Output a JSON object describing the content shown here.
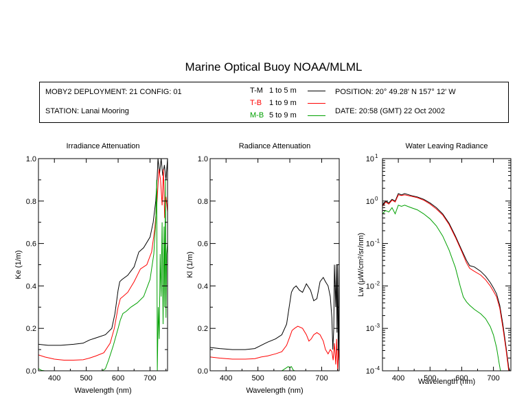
{
  "page_title": "Marine Optical Buoy NOAA/MLML",
  "info": {
    "deployment": "MOBY2 DEPLOYMENT: 21 CONFIG: 01",
    "station": "STATION: Lanai Mooring",
    "position": "POSITION: 20° 49.28' N   157° 12' W",
    "date": "DATE: 20:58 (GMT) 22 Oct 2002",
    "legend": [
      {
        "code": "T-M",
        "range": "1 to 5  m",
        "color": "#000000"
      },
      {
        "code": "T-B",
        "range": "1 to 9  m",
        "color": "#ff0000"
      },
      {
        "code": "M-B",
        "range": "5 to 9  m",
        "color": "#00a000"
      }
    ]
  },
  "chart_data": [
    {
      "type": "line",
      "title": "Irradiance Attenuation",
      "xlabel": "Wavelength (nm)",
      "ylabel": "Ke  (1/m)",
      "xlim": [
        350,
        755
      ],
      "ylim": [
        0,
        1.0
      ],
      "xticks": [
        400,
        500,
        600,
        700
      ],
      "yticks": [
        "0.0",
        "0.2",
        "0.4",
        "0.6",
        "0.8",
        "1.0"
      ],
      "series": [
        {
          "code": "T-M",
          "color": "#000000",
          "points": [
            [
              350,
              0.125
            ],
            [
              380,
              0.12
            ],
            [
              420,
              0.12
            ],
            [
              460,
              0.125
            ],
            [
              490,
              0.13
            ],
            [
              510,
              0.145
            ],
            [
              530,
              0.155
            ],
            [
              560,
              0.17
            ],
            [
              580,
              0.2
            ],
            [
              590,
              0.27
            ],
            [
              600,
              0.38
            ],
            [
              605,
              0.42
            ],
            [
              612,
              0.43
            ],
            [
              630,
              0.45
            ],
            [
              650,
              0.49
            ],
            [
              665,
              0.56
            ],
            [
              680,
              0.58
            ],
            [
              700,
              0.63
            ],
            [
              710,
              0.7
            ],
            [
              718,
              0.8
            ],
            [
              722,
              0.9
            ],
            [
              725,
              1.0
            ],
            [
              730,
              0.93
            ],
            [
              735,
              1.0
            ],
            [
              740,
              0.92
            ],
            [
              745,
              0.97
            ],
            [
              750,
              0.9
            ],
            [
              755,
              1.0
            ]
          ]
        },
        {
          "code": "T-B",
          "color": "#ff0000",
          "points": [
            [
              350,
              0.075
            ],
            [
              370,
              0.065
            ],
            [
              400,
              0.055
            ],
            [
              430,
              0.05
            ],
            [
              460,
              0.05
            ],
            [
              490,
              0.052
            ],
            [
              510,
              0.06
            ],
            [
              530,
              0.07
            ],
            [
              555,
              0.085
            ],
            [
              575,
              0.13
            ],
            [
              588,
              0.2
            ],
            [
              600,
              0.3
            ],
            [
              607,
              0.34
            ],
            [
              615,
              0.35
            ],
            [
              630,
              0.37
            ],
            [
              650,
              0.42
            ],
            [
              670,
              0.48
            ],
            [
              690,
              0.5
            ],
            [
              705,
              0.56
            ],
            [
              715,
              0.67
            ],
            [
              722,
              0.8
            ],
            [
              728,
              0.95
            ],
            [
              733,
              0.9
            ],
            [
              738,
              0.78
            ],
            [
              742,
              0.95
            ],
            [
              746,
              0.72
            ],
            [
              750,
              0.82
            ],
            [
              755,
              0.75
            ]
          ]
        },
        {
          "code": "M-B",
          "color": "#00a000",
          "points": [
            [
              350,
              0.01
            ],
            [
              360,
              0.002
            ],
            [
              370,
              0.0
            ],
            [
              550,
              0.0
            ],
            [
              560,
              0.01
            ],
            [
              570,
              0.05
            ],
            [
              585,
              0.12
            ],
            [
              600,
              0.2
            ],
            [
              607,
              0.24
            ],
            [
              615,
              0.27
            ],
            [
              625,
              0.28
            ],
            [
              640,
              0.3
            ],
            [
              660,
              0.32
            ],
            [
              680,
              0.35
            ],
            [
              700,
              0.43
            ],
            [
              712,
              0.55
            ],
            [
              718,
              0.7
            ],
            [
              721,
              0.9
            ],
            [
              723,
              0.0
            ],
            [
              726,
              0.3
            ],
            [
              729,
              0.15
            ],
            [
              732,
              0.55
            ],
            [
              735,
              0.35
            ],
            [
              738,
              0.7
            ],
            [
              741,
              0.22
            ],
            [
              744,
              0.68
            ],
            [
              746,
              0.3
            ],
            [
              748,
              0.9
            ],
            [
              750,
              0.25
            ],
            [
              752,
              0.55
            ],
            [
              755,
              0.6
            ]
          ]
        }
      ]
    },
    {
      "type": "line",
      "title": "Radiance Attenuation",
      "xlabel": "Wavelength (nm)",
      "ylabel": "Kl  (1/m)",
      "xlim": [
        350,
        755
      ],
      "ylim": [
        0,
        1.0
      ],
      "xticks": [
        400,
        500,
        600,
        700
      ],
      "yticks": [
        "0.0",
        "0.2",
        "0.4",
        "0.6",
        "0.8",
        "1.0"
      ],
      "series": [
        {
          "code": "T-M",
          "color": "#000000",
          "points": [
            [
              350,
              0.11
            ],
            [
              380,
              0.105
            ],
            [
              420,
              0.1
            ],
            [
              460,
              0.1
            ],
            [
              490,
              0.105
            ],
            [
              510,
              0.12
            ],
            [
              530,
              0.135
            ],
            [
              555,
              0.15
            ],
            [
              575,
              0.17
            ],
            [
              590,
              0.22
            ],
            [
              598,
              0.3
            ],
            [
              605,
              0.37
            ],
            [
              612,
              0.39
            ],
            [
              620,
              0.4
            ],
            [
              630,
              0.38
            ],
            [
              640,
              0.37
            ],
            [
              652,
              0.41
            ],
            [
              665,
              0.38
            ],
            [
              675,
              0.33
            ],
            [
              685,
              0.34
            ],
            [
              695,
              0.42
            ],
            [
              705,
              0.44
            ],
            [
              712,
              0.42
            ],
            [
              720,
              0.4
            ],
            [
              727,
              0.35
            ],
            [
              732,
              0.25
            ],
            [
              735,
              0.1
            ],
            [
              738,
              0.2
            ],
            [
              740,
              0.5
            ],
            [
              744,
              0.3
            ],
            [
              746,
              0.5
            ],
            [
              748,
              0.18
            ],
            [
              750,
              0.5
            ],
            [
              752,
              0.05
            ],
            [
              755,
              0.5
            ]
          ]
        },
        {
          "code": "T-B",
          "color": "#ff0000",
          "points": [
            [
              350,
              0.065
            ],
            [
              380,
              0.06
            ],
            [
              420,
              0.055
            ],
            [
              460,
              0.055
            ],
            [
              490,
              0.057
            ],
            [
              510,
              0.065
            ],
            [
              530,
              0.07
            ],
            [
              555,
              0.08
            ],
            [
              575,
              0.09
            ],
            [
              590,
              0.12
            ],
            [
              600,
              0.16
            ],
            [
              607,
              0.19
            ],
            [
              615,
              0.2
            ],
            [
              625,
              0.21
            ],
            [
              640,
              0.2
            ],
            [
              652,
              0.17
            ],
            [
              660,
              0.14
            ],
            [
              667,
              0.15
            ],
            [
              675,
              0.17
            ],
            [
              685,
              0.18
            ],
            [
              695,
              0.17
            ],
            [
              705,
              0.14
            ],
            [
              712,
              0.1
            ],
            [
              720,
              0.08
            ],
            [
              727,
              0.1
            ],
            [
              732,
              0.09
            ],
            [
              736,
              0.05
            ],
            [
              740,
              0.13
            ],
            [
              744,
              0.03
            ],
            [
              747,
              0.15
            ],
            [
              750,
              0.0
            ],
            [
              753,
              0.1
            ],
            [
              755,
              0.05
            ]
          ]
        },
        {
          "code": "M-B",
          "color": "#00a000",
          "points": [
            [
              575,
              0.0
            ],
            [
              585,
              0.01
            ],
            [
              595,
              0.02
            ],
            [
              600,
              0.015
            ],
            [
              605,
              0.02
            ],
            [
              610,
              0.005
            ],
            [
              615,
              0.0
            ]
          ]
        }
      ]
    },
    {
      "type": "line",
      "title": "Water Leaving Radiance",
      "xlabel": "Wavelength (nm)",
      "ylabel": "Lw  (μW/cm²/sr/nm)",
      "xlim": [
        350,
        755
      ],
      "ylim": [
        0.0001,
        10
      ],
      "yscale": "log",
      "xticks": [
        400,
        500,
        600,
        700
      ],
      "yticks": [
        {
          "base": "10",
          "exp": "1"
        },
        {
          "base": "10",
          "exp": "0"
        },
        {
          "base": "10",
          "exp": "-1"
        },
        {
          "base": "10",
          "exp": "-2"
        },
        {
          "base": "10",
          "exp": "-3"
        },
        {
          "base": "10",
          "exp": "-4"
        }
      ],
      "series": [
        {
          "code": "T-M",
          "color": "#000000",
          "points": [
            [
              350,
              0.8
            ],
            [
              360,
              1.0
            ],
            [
              370,
              0.9
            ],
            [
              380,
              1.1
            ],
            [
              390,
              1.0
            ],
            [
              400,
              1.5
            ],
            [
              410,
              1.4
            ],
            [
              420,
              1.5
            ],
            [
              440,
              1.35
            ],
            [
              460,
              1.25
            ],
            [
              480,
              1.1
            ],
            [
              500,
              0.9
            ],
            [
              520,
              0.7
            ],
            [
              540,
              0.5
            ],
            [
              560,
              0.3
            ],
            [
              580,
              0.15
            ],
            [
              600,
              0.07
            ],
            [
              615,
              0.04
            ],
            [
              625,
              0.03
            ],
            [
              640,
              0.028
            ],
            [
              660,
              0.022
            ],
            [
              675,
              0.017
            ],
            [
              690,
              0.012
            ],
            [
              700,
              0.009
            ],
            [
              710,
              0.0065
            ],
            [
              720,
              0.0035
            ],
            [
              730,
              0.0012
            ],
            [
              740,
              0.00035
            ],
            [
              748,
              0.00012
            ],
            [
              752,
              0.0001
            ]
          ]
        },
        {
          "code": "T-B",
          "color": "#ff0000",
          "points": [
            [
              350,
              0.75
            ],
            [
              360,
              0.95
            ],
            [
              370,
              0.85
            ],
            [
              380,
              1.05
            ],
            [
              390,
              0.95
            ],
            [
              400,
              1.4
            ],
            [
              410,
              1.35
            ],
            [
              420,
              1.4
            ],
            [
              440,
              1.3
            ],
            [
              460,
              1.2
            ],
            [
              480,
              1.05
            ],
            [
              500,
              0.85
            ],
            [
              520,
              0.65
            ],
            [
              540,
              0.47
            ],
            [
              560,
              0.28
            ],
            [
              580,
              0.14
            ],
            [
              600,
              0.065
            ],
            [
              615,
              0.035
            ],
            [
              625,
              0.026
            ],
            [
              640,
              0.022
            ],
            [
              660,
              0.018
            ],
            [
              675,
              0.014
            ],
            [
              690,
              0.01
            ],
            [
              700,
              0.0075
            ],
            [
              710,
              0.0055
            ],
            [
              720,
              0.003
            ],
            [
              730,
              0.001
            ],
            [
              740,
              0.0003
            ],
            [
              748,
              0.0001
            ]
          ]
        },
        {
          "code": "M-B",
          "color": "#00a000",
          "points": [
            [
              350,
              0.5
            ],
            [
              360,
              0.6
            ],
            [
              370,
              0.55
            ],
            [
              380,
              0.7
            ],
            [
              390,
              0.5
            ],
            [
              400,
              0.8
            ],
            [
              410,
              0.75
            ],
            [
              420,
              0.8
            ],
            [
              440,
              0.7
            ],
            [
              460,
              0.62
            ],
            [
              480,
              0.5
            ],
            [
              500,
              0.38
            ],
            [
              520,
              0.26
            ],
            [
              540,
              0.15
            ],
            [
              560,
              0.07
            ],
            [
              580,
              0.027
            ],
            [
              595,
              0.01
            ],
            [
              605,
              0.0055
            ],
            [
              615,
              0.0042
            ],
            [
              625,
              0.0035
            ],
            [
              640,
              0.0028
            ],
            [
              660,
              0.0022
            ],
            [
              675,
              0.0017
            ],
            [
              690,
              0.0011
            ],
            [
              700,
              0.0007
            ],
            [
              710,
              0.00035
            ],
            [
              718,
              0.00015
            ],
            [
              722,
              0.0001
            ]
          ]
        }
      ]
    }
  ]
}
